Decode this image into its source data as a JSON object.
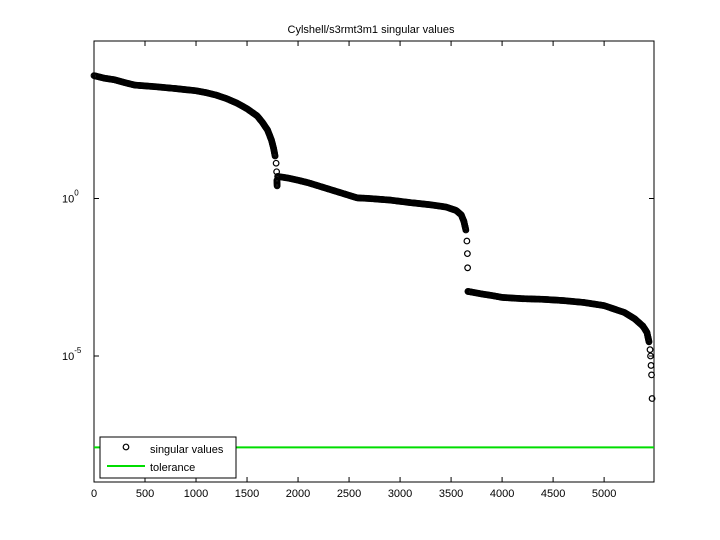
{
  "chart_data": {
    "type": "scatter",
    "title": "Cylshell/s3rmt3m1 singular values",
    "xlabel": "",
    "ylabel": "",
    "x_scale": "linear",
    "y_scale": "log",
    "xlim": [
      0,
      5489
    ],
    "ylim_log10": [
      -9,
      5
    ],
    "x_ticks": [
      0,
      500,
      1000,
      1500,
      2000,
      2500,
      3000,
      3500,
      4000,
      4500,
      5000
    ],
    "x_tick_labels": [
      "0",
      "500",
      "1000",
      "1500",
      "2000",
      "2500",
      "3000",
      "3500",
      "4000",
      "4500",
      "5000"
    ],
    "y_ticks_log10": [
      0,
      -5
    ],
    "y_tick_labels": [
      {
        "base": "10",
        "exp": "0"
      },
      {
        "base": "10",
        "exp": "-5"
      }
    ],
    "grid": false,
    "legend": {
      "position": "bottom-left",
      "entries": [
        {
          "label": "singular values",
          "marker": "circle",
          "color": "#000000"
        },
        {
          "label": "tolerance",
          "marker": "line",
          "color": "#00dd00"
        }
      ]
    },
    "series": [
      {
        "name": "singular values",
        "style": "markers",
        "color": "#000000",
        "points_x_log10y": [
          [
            0,
            3.9
          ],
          [
            100,
            3.82
          ],
          [
            200,
            3.77
          ],
          [
            300,
            3.68
          ],
          [
            400,
            3.6
          ],
          [
            600,
            3.55
          ],
          [
            800,
            3.49
          ],
          [
            1000,
            3.42
          ],
          [
            1100,
            3.36
          ],
          [
            1200,
            3.28
          ],
          [
            1300,
            3.17
          ],
          [
            1400,
            3.03
          ],
          [
            1500,
            2.85
          ],
          [
            1600,
            2.62
          ],
          [
            1650,
            2.42
          ],
          [
            1700,
            2.18
          ],
          [
            1720,
            2.02
          ],
          [
            1740,
            1.85
          ],
          [
            1760,
            1.6
          ],
          [
            1775,
            1.35
          ],
          [
            1785,
            1.12
          ],
          [
            1790,
            0.85
          ],
          [
            1793,
            0.58
          ],
          [
            1795,
            0.4
          ],
          [
            1800,
            0.7
          ],
          [
            1900,
            0.65
          ],
          [
            2000,
            0.58
          ],
          [
            2100,
            0.5
          ],
          [
            2200,
            0.4
          ],
          [
            2300,
            0.3
          ],
          [
            2400,
            0.2
          ],
          [
            2500,
            0.1
          ],
          [
            2580,
            0.02
          ],
          [
            2700,
            0.0
          ],
          [
            2900,
            -0.05
          ],
          [
            3100,
            -0.13
          ],
          [
            3300,
            -0.2
          ],
          [
            3450,
            -0.27
          ],
          [
            3550,
            -0.38
          ],
          [
            3600,
            -0.52
          ],
          [
            3625,
            -0.72
          ],
          [
            3645,
            -1.0
          ],
          [
            3655,
            -1.35
          ],
          [
            3660,
            -1.75
          ],
          [
            3662,
            -2.2
          ],
          [
            3665,
            -2.95
          ],
          [
            3700,
            -2.97
          ],
          [
            3800,
            -3.03
          ],
          [
            3900,
            -3.08
          ],
          [
            4000,
            -3.14
          ],
          [
            4200,
            -3.18
          ],
          [
            4400,
            -3.2
          ],
          [
            4600,
            -3.24
          ],
          [
            4800,
            -3.3
          ],
          [
            5000,
            -3.4
          ],
          [
            5200,
            -3.62
          ],
          [
            5300,
            -3.82
          ],
          [
            5380,
            -4.05
          ],
          [
            5420,
            -4.25
          ],
          [
            5440,
            -4.55
          ],
          [
            5450,
            -4.8
          ],
          [
            5455,
            -5.0
          ],
          [
            5460,
            -5.3
          ],
          [
            5465,
            -5.6
          ],
          [
            5470,
            -6.35
          ]
        ]
      },
      {
        "name": "tolerance",
        "style": "line",
        "color": "#00dd00",
        "log10_value": -7.9
      }
    ]
  }
}
